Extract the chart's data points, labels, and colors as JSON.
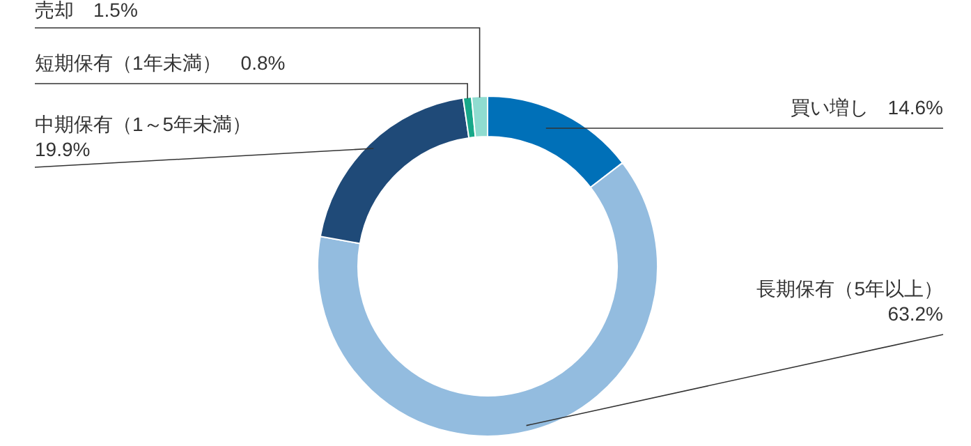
{
  "chart_data": {
    "type": "donut",
    "categories": [
      "買い増し",
      "長期保有（5年以上）",
      "中期保有（1～5年未満）",
      "短期保有（1年未満）",
      "売却"
    ],
    "values": [
      14.6,
      63.2,
      19.9,
      0.8,
      1.5
    ],
    "value_labels": [
      "14.6%",
      "63.2%",
      "19.9%",
      "0.8%",
      "1.5%"
    ],
    "colors": [
      "#0070b8",
      "#93bcdf",
      "#1f4a78",
      "#17a889",
      "#8fdcd0"
    ]
  }
}
